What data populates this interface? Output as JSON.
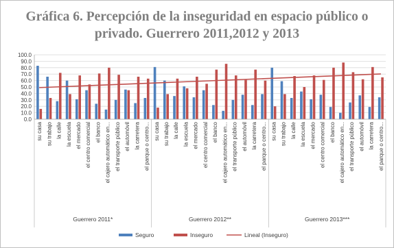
{
  "chart_data": {
    "type": "bar",
    "title": "Gráfica 6. Percepción de la inseguridad en espacio público o privado. Guerrero 2011,2012 y 2013",
    "xlabel": "",
    "ylabel": "",
    "ylim": [
      0,
      100
    ],
    "yticks": [
      "0.0",
      "10.0",
      "20.0",
      "30.0",
      "40.0",
      "50.0",
      "60.0",
      "70.0",
      "80.0",
      "90.0",
      "100.0"
    ],
    "grid": true,
    "legend_position": "bottom",
    "categories": [
      "su casa",
      "su trabajo",
      "la calle",
      "la escuela",
      "el mercado",
      "el centro comercial",
      "el banco",
      "el cajero automático en...",
      "el transporte público",
      "el automóvil",
      "la carretera",
      "el parque o centro..."
    ],
    "groups": [
      {
        "label": "Guerrero 2011*",
        "seguro": [
          83,
          66,
          28,
          60,
          31,
          45,
          24,
          15,
          30,
          46,
          25,
          33
        ],
        "inseguro": [
          16,
          33,
          72,
          39,
          68,
          54,
          71,
          80,
          69,
          45,
          66,
          63
        ]
      },
      {
        "label": "Guerrero 2012**",
        "seguro": [
          81,
          60,
          36,
          51,
          34,
          45,
          22,
          13,
          30,
          38,
          22,
          39
        ],
        "inseguro": [
          18,
          39,
          63,
          48,
          66,
          55,
          77,
          86,
          68,
          61,
          77,
          60
        ]
      },
      {
        "label": "Guerrero 2013***",
        "seguro": [
          80,
          59,
          33,
          43,
          31,
          38,
          19,
          10,
          26,
          37,
          19,
          34
        ],
        "inseguro": [
          20,
          39,
          67,
          50,
          68,
          61,
          80,
          88,
          73,
          62,
          81,
          65
        ]
      }
    ],
    "series": [
      {
        "name": "Seguro",
        "color": "#4f81bd"
      },
      {
        "name": "Inseguro",
        "color": "#c0504d"
      },
      {
        "name": "Lineal (Inseguro)",
        "color": "#c0504d",
        "kind": "trendline"
      }
    ]
  }
}
